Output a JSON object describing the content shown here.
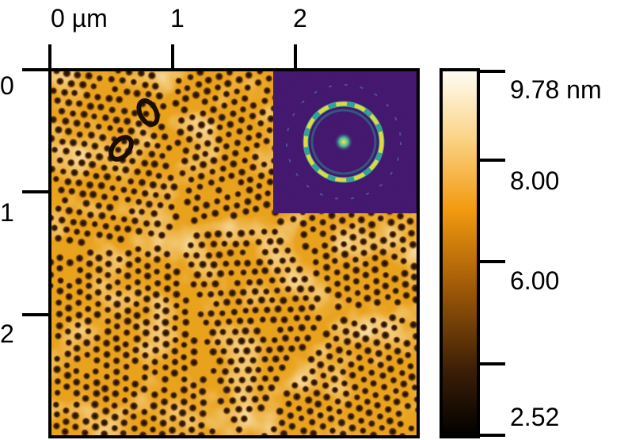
{
  "image": {
    "x_axis": {
      "ticks": [
        "0 µm",
        "1",
        "2"
      ]
    },
    "y_axis": {
      "ticks": [
        "0",
        "1",
        "2"
      ]
    },
    "colorbar": {
      "max_label": "9.78 nm",
      "labels": [
        "8.00",
        "6.00",
        "2.52"
      ],
      "min_value": 2.52,
      "max_value": 9.78,
      "unit": "nm"
    },
    "colors": {
      "map_high": "#fff8e6",
      "map_mid": "#f2a21b",
      "map_low": "#0b0603",
      "fft_background": "#44186e",
      "fft_ring": "#f1dd3a"
    }
  }
}
